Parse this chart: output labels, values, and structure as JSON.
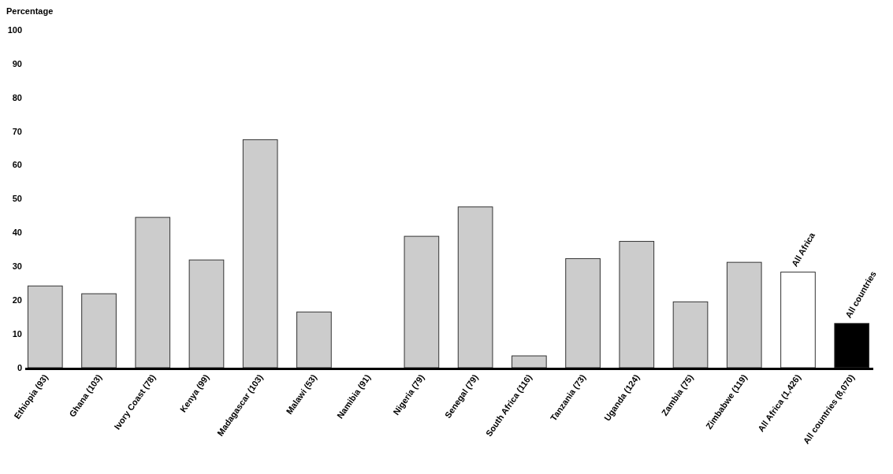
{
  "chart_data": {
    "type": "bar",
    "ylabel": "Percentage",
    "categories": [
      "Ethiopia (93)",
      "Ghana (103)",
      "Ivory Coast (78)",
      "Kenya (99)",
      "Madagascar (103)",
      "Malawi (53)",
      "Namibia (91)",
      "Nigeria (79)",
      "Senegal (79)",
      "South Africa (116)",
      "Tanzania (73)",
      "Uganda (124)",
      "Zambia (75)",
      "Zimbabwe (119)",
      "All Africa (1,426)",
      "All countries (8,070)"
    ],
    "values": [
      24.2,
      21.9,
      44.5,
      31.9,
      67.5,
      16.5,
      0,
      38.9,
      47.6,
      3.5,
      32.3,
      37.4,
      19.5,
      31.2,
      28.3,
      13.1
    ],
    "colors": [
      "#cccccc",
      "#cccccc",
      "#cccccc",
      "#cccccc",
      "#cccccc",
      "#cccccc",
      "#cccccc",
      "#cccccc",
      "#cccccc",
      "#cccccc",
      "#cccccc",
      "#cccccc",
      "#cccccc",
      "#cccccc",
      "#ffffff",
      "#000000"
    ],
    "ylim": [
      0,
      100
    ],
    "yticks": [
      0,
      10,
      20,
      30,
      40,
      50,
      60,
      70,
      80,
      90,
      100
    ],
    "grid": false,
    "annotations": [
      {
        "text": "All Africa",
        "x": "All Africa (1,426)",
        "y": 28.3
      },
      {
        "text": "All countries",
        "x": "All countries (8,070)",
        "y": 13.1
      }
    ]
  }
}
